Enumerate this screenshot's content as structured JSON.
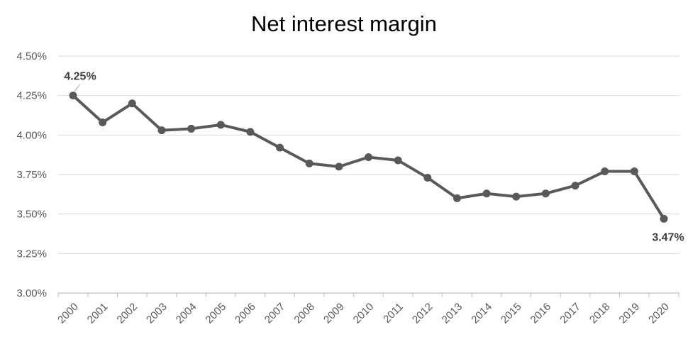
{
  "chart_data": {
    "type": "line",
    "title": "Net interest margin",
    "xlabel": "",
    "ylabel": "",
    "x": [
      "2000",
      "2001",
      "2002",
      "2003",
      "2004",
      "2005",
      "2006",
      "2007",
      "2008",
      "2009",
      "2010",
      "2011",
      "2012",
      "2013",
      "2014",
      "2015",
      "2016",
      "2017",
      "2018",
      "2019",
      "2020"
    ],
    "series": [
      {
        "values": [
          4.25,
          4.08,
          4.2,
          4.03,
          4.04,
          4.065,
          4.02,
          3.92,
          3.82,
          3.8,
          3.86,
          3.84,
          3.73,
          3.6,
          3.63,
          3.61,
          3.63,
          3.68,
          3.77,
          3.77,
          3.47
        ]
      }
    ],
    "ylim": [
      3.0,
      4.5
    ],
    "yticks": [
      "3.00%",
      "3.25%",
      "3.50%",
      "3.75%",
      "4.00%",
      "4.25%",
      "4.50%"
    ],
    "ytick_values": [
      3.0,
      3.25,
      3.5,
      3.75,
      4.0,
      4.25,
      4.5
    ],
    "data_labels": [
      {
        "index": 0,
        "text": "4.25%"
      },
      {
        "index": 20,
        "text": "3.47%"
      }
    ],
    "grid": true,
    "legend": "none",
    "colors": {
      "line": "#595959",
      "grid": "#d9d9d9",
      "axis": "#bfbfbf"
    }
  }
}
